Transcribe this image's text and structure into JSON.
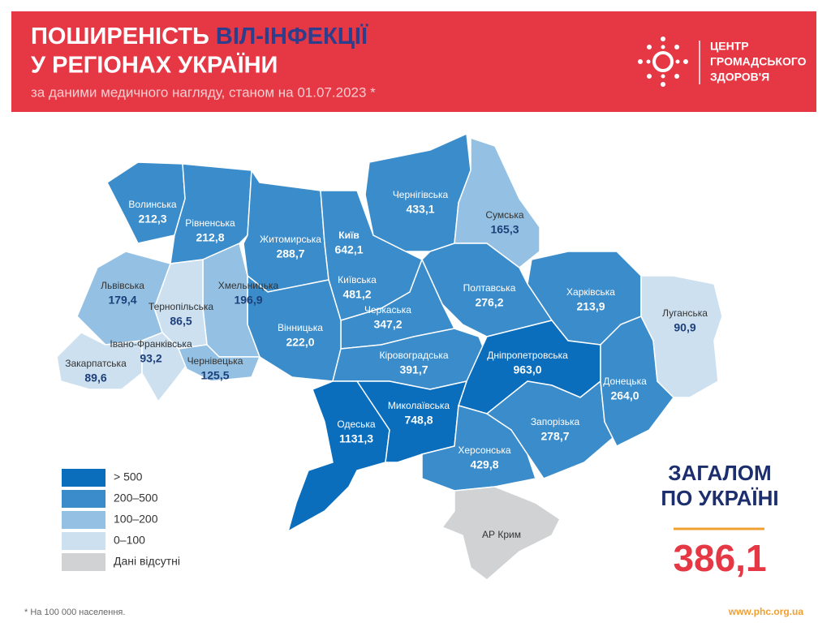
{
  "header": {
    "title_part1": "ПОШИРЕНІСТЬ",
    "title_part2": "ВІЛ-ІНФЕКЦІЇ",
    "title_line2": "У РЕГІОНАХ УКРАЇНИ",
    "subtitle": "за даними медичного нагляду, станом на 01.07.2023 *",
    "logo": [
      "ЦЕНТР",
      "ГРОМАДСЬКОГО",
      "ЗДОРОВ'Я"
    ]
  },
  "regions": [
    {
      "name": "Волинська",
      "value": "212,3",
      "color": "#3a8cca"
    },
    {
      "name": "Рівненська",
      "value": "212,8",
      "color": "#3a8cca"
    },
    {
      "name": "Житомирська",
      "value": "288,7",
      "color": "#3a8cca"
    },
    {
      "name": "Київ",
      "value": "642,1",
      "color": "#0a6ebd"
    },
    {
      "name": "Київська",
      "value": "481,2",
      "color": "#3a8cca"
    },
    {
      "name": "Чернігівська",
      "value": "433,1",
      "color": "#3a8cca"
    },
    {
      "name": "Сумська",
      "value": "165,3",
      "color": "#94c1e3"
    },
    {
      "name": "Харківська",
      "value": "213,9",
      "color": "#3a8cca"
    },
    {
      "name": "Полтавська",
      "value": "276,2",
      "color": "#3a8cca"
    },
    {
      "name": "Черкаська",
      "value": "347,2",
      "color": "#3a8cca"
    },
    {
      "name": "Вінницька",
      "value": "222,0",
      "color": "#3a8cca"
    },
    {
      "name": "Хмельницька",
      "value": "196,9",
      "color": "#94c1e3"
    },
    {
      "name": "Тернопільська",
      "value": "86,5",
      "color": "#cce0f0"
    },
    {
      "name": "Львівська",
      "value": "179,4",
      "color": "#94c1e3"
    },
    {
      "name": "Закарпатська",
      "value": "89,6",
      "color": "#cce0f0"
    },
    {
      "name": "Івано-Франківська",
      "value": "93,2",
      "color": "#cce0f0"
    },
    {
      "name": "Чернівецька",
      "value": "125,5",
      "color": "#94c1e3"
    },
    {
      "name": "Кіровоградська",
      "value": "391,7",
      "color": "#3a8cca"
    },
    {
      "name": "Дніпропетровська",
      "value": "963,0",
      "color": "#0a6ebd"
    },
    {
      "name": "Одеська",
      "value": "1131,3",
      "color": "#0a6ebd"
    },
    {
      "name": "Миколаївська",
      "value": "748,8",
      "color": "#0a6ebd"
    },
    {
      "name": "Херсонська",
      "value": "429,8",
      "color": "#3a8cca"
    },
    {
      "name": "Запорізька",
      "value": "278,7",
      "color": "#3a8cca"
    },
    {
      "name": "Донецька",
      "value": "264,0",
      "color": "#3a8cca"
    },
    {
      "name": "Луганська",
      "value": "90,9",
      "color": "#cce0f0"
    },
    {
      "name": "АР Крим",
      "color": "#d1d2d4"
    }
  ],
  "legend": [
    {
      "label": "> 500",
      "color": "#0a6ebd"
    },
    {
      "label": "200–500",
      "color": "#3a8cca"
    },
    {
      "label": "100–200",
      "color": "#94c1e3"
    },
    {
      "label": "0–100",
      "color": "#cce0f0"
    },
    {
      "label": "Дані відсутні",
      "color": "#d1d2d4"
    }
  ],
  "total": {
    "line1": "ЗАГАЛОМ",
    "line2": "ПО УКРАЇНІ",
    "value": "386,1"
  },
  "footnote": "* На 100 000 населення.",
  "url": "www.phc.org.ua"
}
